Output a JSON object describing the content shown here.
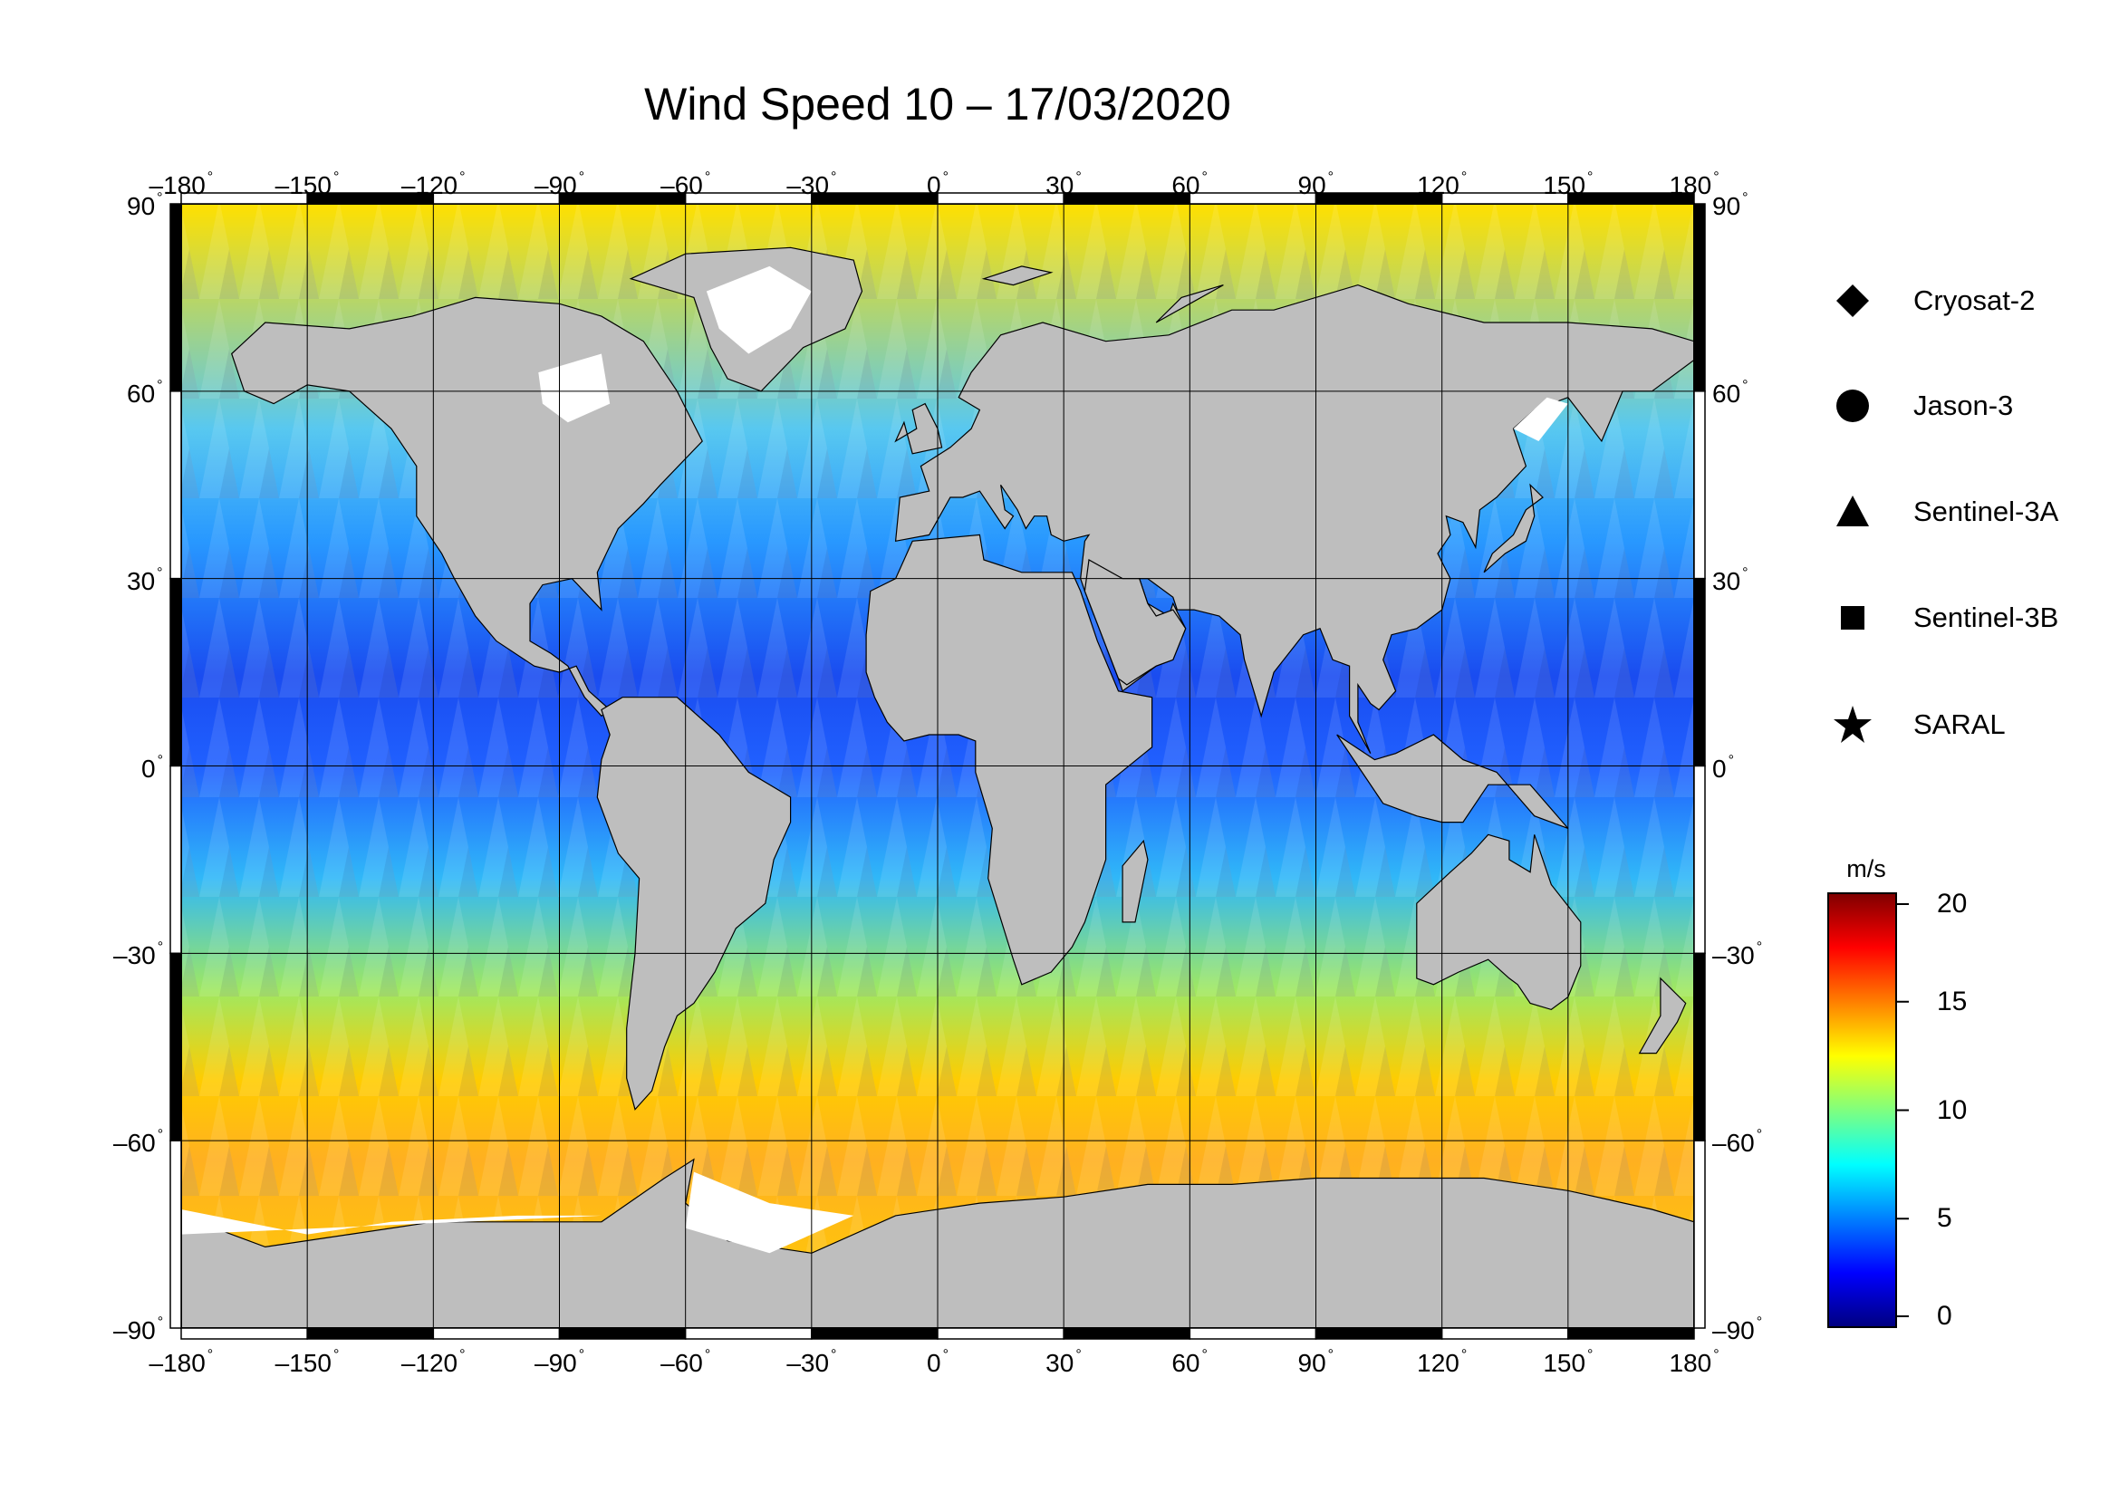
{
  "title": "Wind Speed 10 – 17/03/2020",
  "map": {
    "projection": "equirectangular",
    "lon_range": [
      -180,
      180
    ],
    "lat_range": [
      -90,
      90
    ],
    "grid": true,
    "lon_ticks": [
      {
        "value": -180,
        "label": "–180"
      },
      {
        "value": -150,
        "label": "–150"
      },
      {
        "value": -120,
        "label": "–120"
      },
      {
        "value": -90,
        "label": "–90"
      },
      {
        "value": -60,
        "label": "–60"
      },
      {
        "value": -30,
        "label": "–30"
      },
      {
        "value": 0,
        "label": "0"
      },
      {
        "value": 30,
        "label": "30"
      },
      {
        "value": 60,
        "label": "60"
      },
      {
        "value": 90,
        "label": "90"
      },
      {
        "value": 120,
        "label": "120"
      },
      {
        "value": 150,
        "label": "150"
      },
      {
        "value": 180,
        "label": "180"
      }
    ],
    "lat_ticks": [
      {
        "value": 90,
        "label": "90"
      },
      {
        "value": 60,
        "label": "60"
      },
      {
        "value": 30,
        "label": "30"
      },
      {
        "value": 0,
        "label": "0"
      },
      {
        "value": -30,
        "label": "–30"
      },
      {
        "value": -60,
        "label": "–60"
      },
      {
        "value": -90,
        "label": "–90"
      }
    ],
    "degree_symbol": "°",
    "colors": {
      "land": "#bebebe",
      "sea_ice": "#ffffff",
      "ocean_mid": "#22c8ee",
      "frame": "#000000"
    }
  },
  "legend": [
    {
      "label": "Cryosat-2",
      "symbol": "diamond-icon"
    },
    {
      "label": "Jason-3",
      "symbol": "circle-icon"
    },
    {
      "label": "Sentinel-3A",
      "symbol": "triangle-icon"
    },
    {
      "label": "Sentinel-3B",
      "symbol": "square-icon"
    },
    {
      "label": "SARAL",
      "symbol": "star-icon"
    }
  ],
  "colorbar": {
    "unit": "m/s",
    "range": [
      0,
      20
    ],
    "ticks": [
      {
        "value": 20,
        "label": "20"
      },
      {
        "value": 15,
        "label": "15"
      },
      {
        "value": 10,
        "label": "10"
      },
      {
        "value": 5,
        "label": "5"
      },
      {
        "value": 0,
        "label": "0"
      }
    ],
    "colors": [
      "#00007f",
      "#0000ff",
      "#007fff",
      "#00ffff",
      "#7fff7f",
      "#ffff00",
      "#ff7f00",
      "#ff0000",
      "#7f0000"
    ]
  }
}
